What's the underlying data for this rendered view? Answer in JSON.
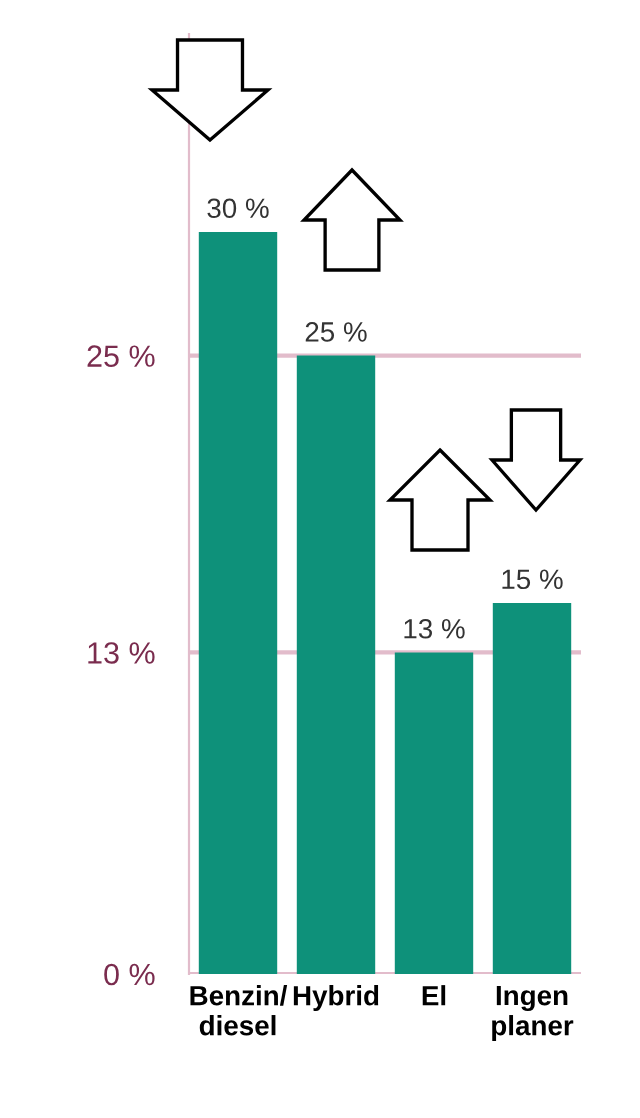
{
  "chart_data": {
    "type": "bar",
    "categories": [
      "Benzin/\ndiesel",
      "Hybrid",
      "El",
      "Ingen\nplaner"
    ],
    "values": [
      30,
      25,
      13,
      15
    ],
    "color": "#0e917a",
    "value_labels": [
      "30 %",
      "25 %",
      "13 %",
      "15 %"
    ],
    "ylim": [
      0,
      38
    ],
    "yticks": [
      {
        "value": 0,
        "label": "0 %"
      },
      {
        "value": 13,
        "label": "13 %"
      },
      {
        "value": 25,
        "label": "25 %"
      }
    ],
    "grid": "y"
  }
}
